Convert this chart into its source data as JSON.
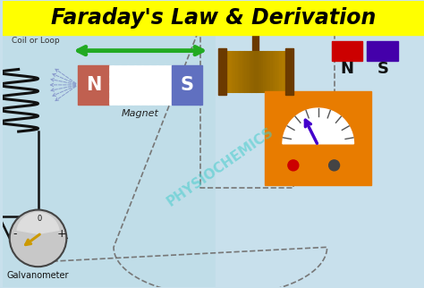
{
  "title": "Faraday's Law & Derivation",
  "title_color": "#000000",
  "title_bg": "#ffff00",
  "title_fontsize": 17,
  "bg_color": "#c8e0ec",
  "left_bg_color": "#c0dde8",
  "right_bg_color": "#c8e0ec",
  "magnet_N_color": "#c06050",
  "magnet_S_color": "#6070c0",
  "arrow_color": "#22aa22",
  "galvanometer_label": "Galvanometer",
  "magnet_label": "Magnet",
  "coil_label": "Coil or Loop",
  "watermark": "PHYSIOCHEMICS",
  "orange_meter_color": "#e87c00",
  "meter_needle_color": "#4400cc",
  "right_N_color": "#cc0000",
  "right_S_color": "#4400aa",
  "spool_dark": "#6b3a00",
  "spool_light": "#d4900a",
  "spool_mid": "#e8b030",
  "wire_color": "#777777",
  "field_color": "#8899cc"
}
